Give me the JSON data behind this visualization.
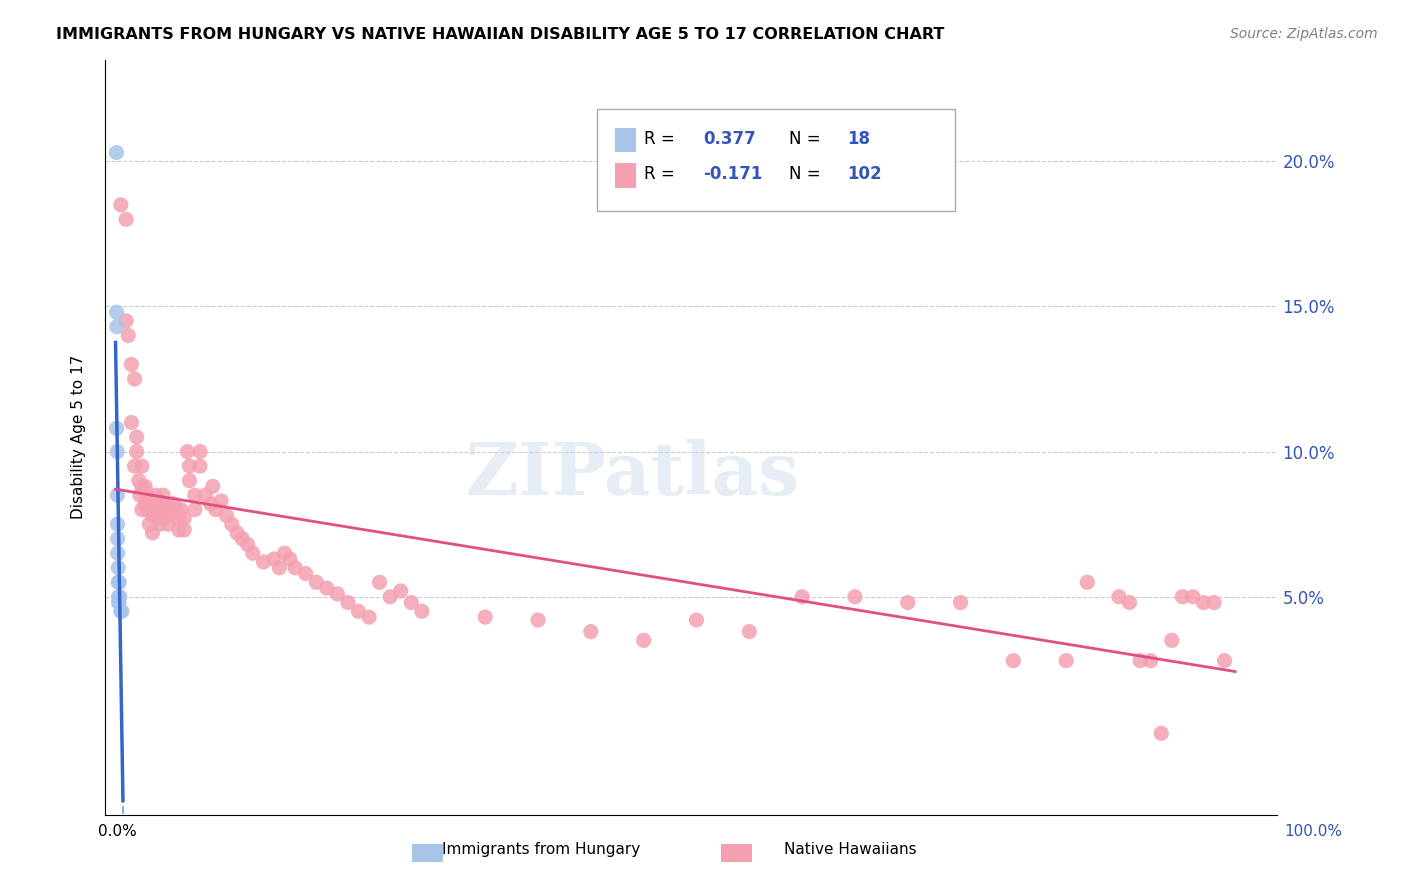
{
  "title": "IMMIGRANTS FROM HUNGARY VS NATIVE HAWAIIAN DISABILITY AGE 5 TO 17 CORRELATION CHART",
  "source": "Source: ZipAtlas.com",
  "ylabel": "Disability Age 5 to 17",
  "hungary_color": "#a8c4e8",
  "hawaiian_color": "#f4a0b0",
  "trend_hungary_color": "#3366cc",
  "trend_hawaiian_color": "#e05080",
  "hungary_r": "0.377",
  "hungary_n": "18",
  "hawaiian_r": "-0.171",
  "hawaiian_n": "102",
  "hungary_points_x": [
    0.0008,
    0.001,
    0.0012,
    0.001,
    0.0015,
    0.0018,
    0.0018,
    0.002,
    0.002,
    0.0025,
    0.0025,
    0.0028,
    0.003,
    0.003,
    0.0035,
    0.004,
    0.005,
    0.006
  ],
  "hungary_points_y": [
    0.203,
    0.148,
    0.143,
    0.108,
    0.1,
    0.085,
    0.075,
    0.07,
    0.065,
    0.06,
    0.055,
    0.05,
    0.048,
    0.048,
    0.055,
    0.05,
    0.045,
    0.045
  ],
  "hawaiian_points_x": [
    0.005,
    0.01,
    0.01,
    0.012,
    0.015,
    0.015,
    0.018,
    0.018,
    0.02,
    0.02,
    0.022,
    0.023,
    0.025,
    0.025,
    0.025,
    0.028,
    0.028,
    0.03,
    0.03,
    0.032,
    0.032,
    0.035,
    0.035,
    0.038,
    0.038,
    0.04,
    0.04,
    0.042,
    0.043,
    0.045,
    0.045,
    0.048,
    0.05,
    0.05,
    0.052,
    0.055,
    0.058,
    0.06,
    0.06,
    0.062,
    0.065,
    0.065,
    0.068,
    0.07,
    0.07,
    0.075,
    0.075,
    0.08,
    0.08,
    0.085,
    0.09,
    0.092,
    0.095,
    0.1,
    0.105,
    0.11,
    0.115,
    0.12,
    0.125,
    0.13,
    0.14,
    0.15,
    0.155,
    0.16,
    0.165,
    0.17,
    0.18,
    0.19,
    0.2,
    0.21,
    0.22,
    0.23,
    0.24,
    0.25,
    0.26,
    0.27,
    0.28,
    0.29,
    0.35,
    0.4,
    0.45,
    0.5,
    0.55,
    0.6,
    0.65,
    0.7,
    0.75,
    0.8,
    0.85,
    0.9,
    0.92,
    0.95,
    0.96,
    0.97,
    0.98,
    0.99,
    1.0,
    1.01,
    1.02,
    1.03,
    1.04,
    1.05
  ],
  "hawaiian_points_y": [
    0.185,
    0.18,
    0.145,
    0.14,
    0.13,
    0.11,
    0.125,
    0.095,
    0.105,
    0.1,
    0.09,
    0.085,
    0.095,
    0.088,
    0.08,
    0.082,
    0.088,
    0.08,
    0.085,
    0.08,
    0.075,
    0.078,
    0.072,
    0.085,
    0.08,
    0.077,
    0.082,
    0.075,
    0.08,
    0.085,
    0.077,
    0.082,
    0.08,
    0.075,
    0.078,
    0.082,
    0.08,
    0.077,
    0.073,
    0.08,
    0.077,
    0.073,
    0.1,
    0.095,
    0.09,
    0.085,
    0.08,
    0.1,
    0.095,
    0.085,
    0.082,
    0.088,
    0.08,
    0.083,
    0.078,
    0.075,
    0.072,
    0.07,
    0.068,
    0.065,
    0.062,
    0.063,
    0.06,
    0.065,
    0.063,
    0.06,
    0.058,
    0.055,
    0.053,
    0.051,
    0.048,
    0.045,
    0.043,
    0.055,
    0.05,
    0.052,
    0.048,
    0.045,
    0.043,
    0.042,
    0.038,
    0.035,
    0.042,
    0.038,
    0.05,
    0.05,
    0.048,
    0.048,
    0.028,
    0.028,
    0.055,
    0.05,
    0.048,
    0.028,
    0.028,
    0.003,
    0.035,
    0.05,
    0.05,
    0.048,
    0.048,
    0.028
  ]
}
